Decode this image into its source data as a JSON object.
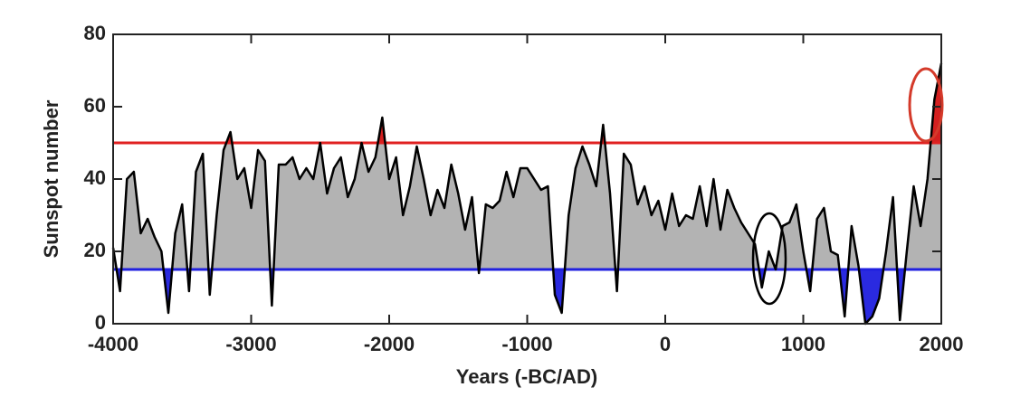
{
  "chart_data": {
    "type": "area",
    "x_label": "Years (-BC/AD)",
    "y_label": "Sunspot number",
    "x": [
      -4000,
      -3950,
      -3900,
      -3850,
      -3800,
      -3750,
      -3700,
      -3650,
      -3600,
      -3550,
      -3500,
      -3450,
      -3400,
      -3350,
      -3300,
      -3250,
      -3200,
      -3150,
      -3100,
      -3050,
      -3000,
      -2950,
      -2900,
      -2850,
      -2800,
      -2750,
      -2700,
      -2650,
      -2600,
      -2550,
      -2500,
      -2450,
      -2400,
      -2350,
      -2300,
      -2250,
      -2200,
      -2150,
      -2100,
      -2050,
      -2000,
      -1950,
      -1900,
      -1850,
      -1800,
      -1750,
      -1700,
      -1650,
      -1600,
      -1550,
      -1500,
      -1450,
      -1400,
      -1350,
      -1300,
      -1250,
      -1200,
      -1150,
      -1100,
      -1050,
      -1000,
      -950,
      -900,
      -850,
      -800,
      -750,
      -700,
      -650,
      -600,
      -550,
      -500,
      -450,
      -400,
      -350,
      -300,
      -250,
      -200,
      -150,
      -100,
      -50,
      0,
      50,
      100,
      150,
      200,
      250,
      300,
      350,
      400,
      450,
      500,
      550,
      600,
      650,
      700,
      750,
      800,
      850,
      900,
      950,
      1000,
      1050,
      1100,
      1150,
      1200,
      1250,
      1300,
      1350,
      1400,
      1450,
      1500,
      1550,
      1600,
      1650,
      1700,
      1750,
      1800,
      1850,
      1900,
      1950,
      2000
    ],
    "series": [
      {
        "color": "#000000",
        "values": [
          21,
          9,
          40,
          42,
          25,
          29,
          24,
          20,
          3,
          25,
          33,
          9,
          42,
          47,
          8,
          30,
          48,
          53,
          40,
          43,
          32,
          48,
          45,
          5,
          44,
          44,
          46,
          40,
          43,
          40,
          50,
          36,
          43,
          46,
          35,
          40,
          50,
          42,
          46,
          57,
          40,
          46,
          30,
          38,
          49,
          40,
          30,
          37,
          32,
          44,
          36,
          26,
          35,
          14,
          33,
          32,
          34,
          42,
          35,
          43,
          43,
          40,
          37,
          38,
          8,
          3,
          30,
          43,
          49,
          44,
          38,
          55,
          36,
          9,
          47,
          44,
          33,
          38,
          30,
          34,
          26,
          36,
          27,
          30,
          29,
          38,
          27,
          40,
          26,
          37,
          32,
          28,
          25,
          22,
          10,
          20,
          15,
          27,
          28,
          33,
          20,
          9,
          29,
          32,
          20,
          19,
          2,
          27,
          16,
          0,
          2,
          7,
          20,
          35,
          1,
          20,
          38,
          27,
          40,
          62,
          72
        ]
      }
    ],
    "threshold_lines": [
      {
        "value": 50,
        "color": "#e02020"
      },
      {
        "value": 15,
        "color": "#2020e0"
      }
    ],
    "fill_colors": {
      "above_high": "#d42020",
      "middle": "#b3b3b3",
      "below_low": "#2a2ae0"
    },
    "xlim": [
      -4000,
      2000
    ],
    "xticks": [
      -4000,
      -3000,
      -2000,
      -1000,
      0,
      1000,
      2000
    ],
    "ylim": [
      0,
      80
    ],
    "yticks": [
      0,
      20,
      40,
      60,
      80
    ]
  }
}
